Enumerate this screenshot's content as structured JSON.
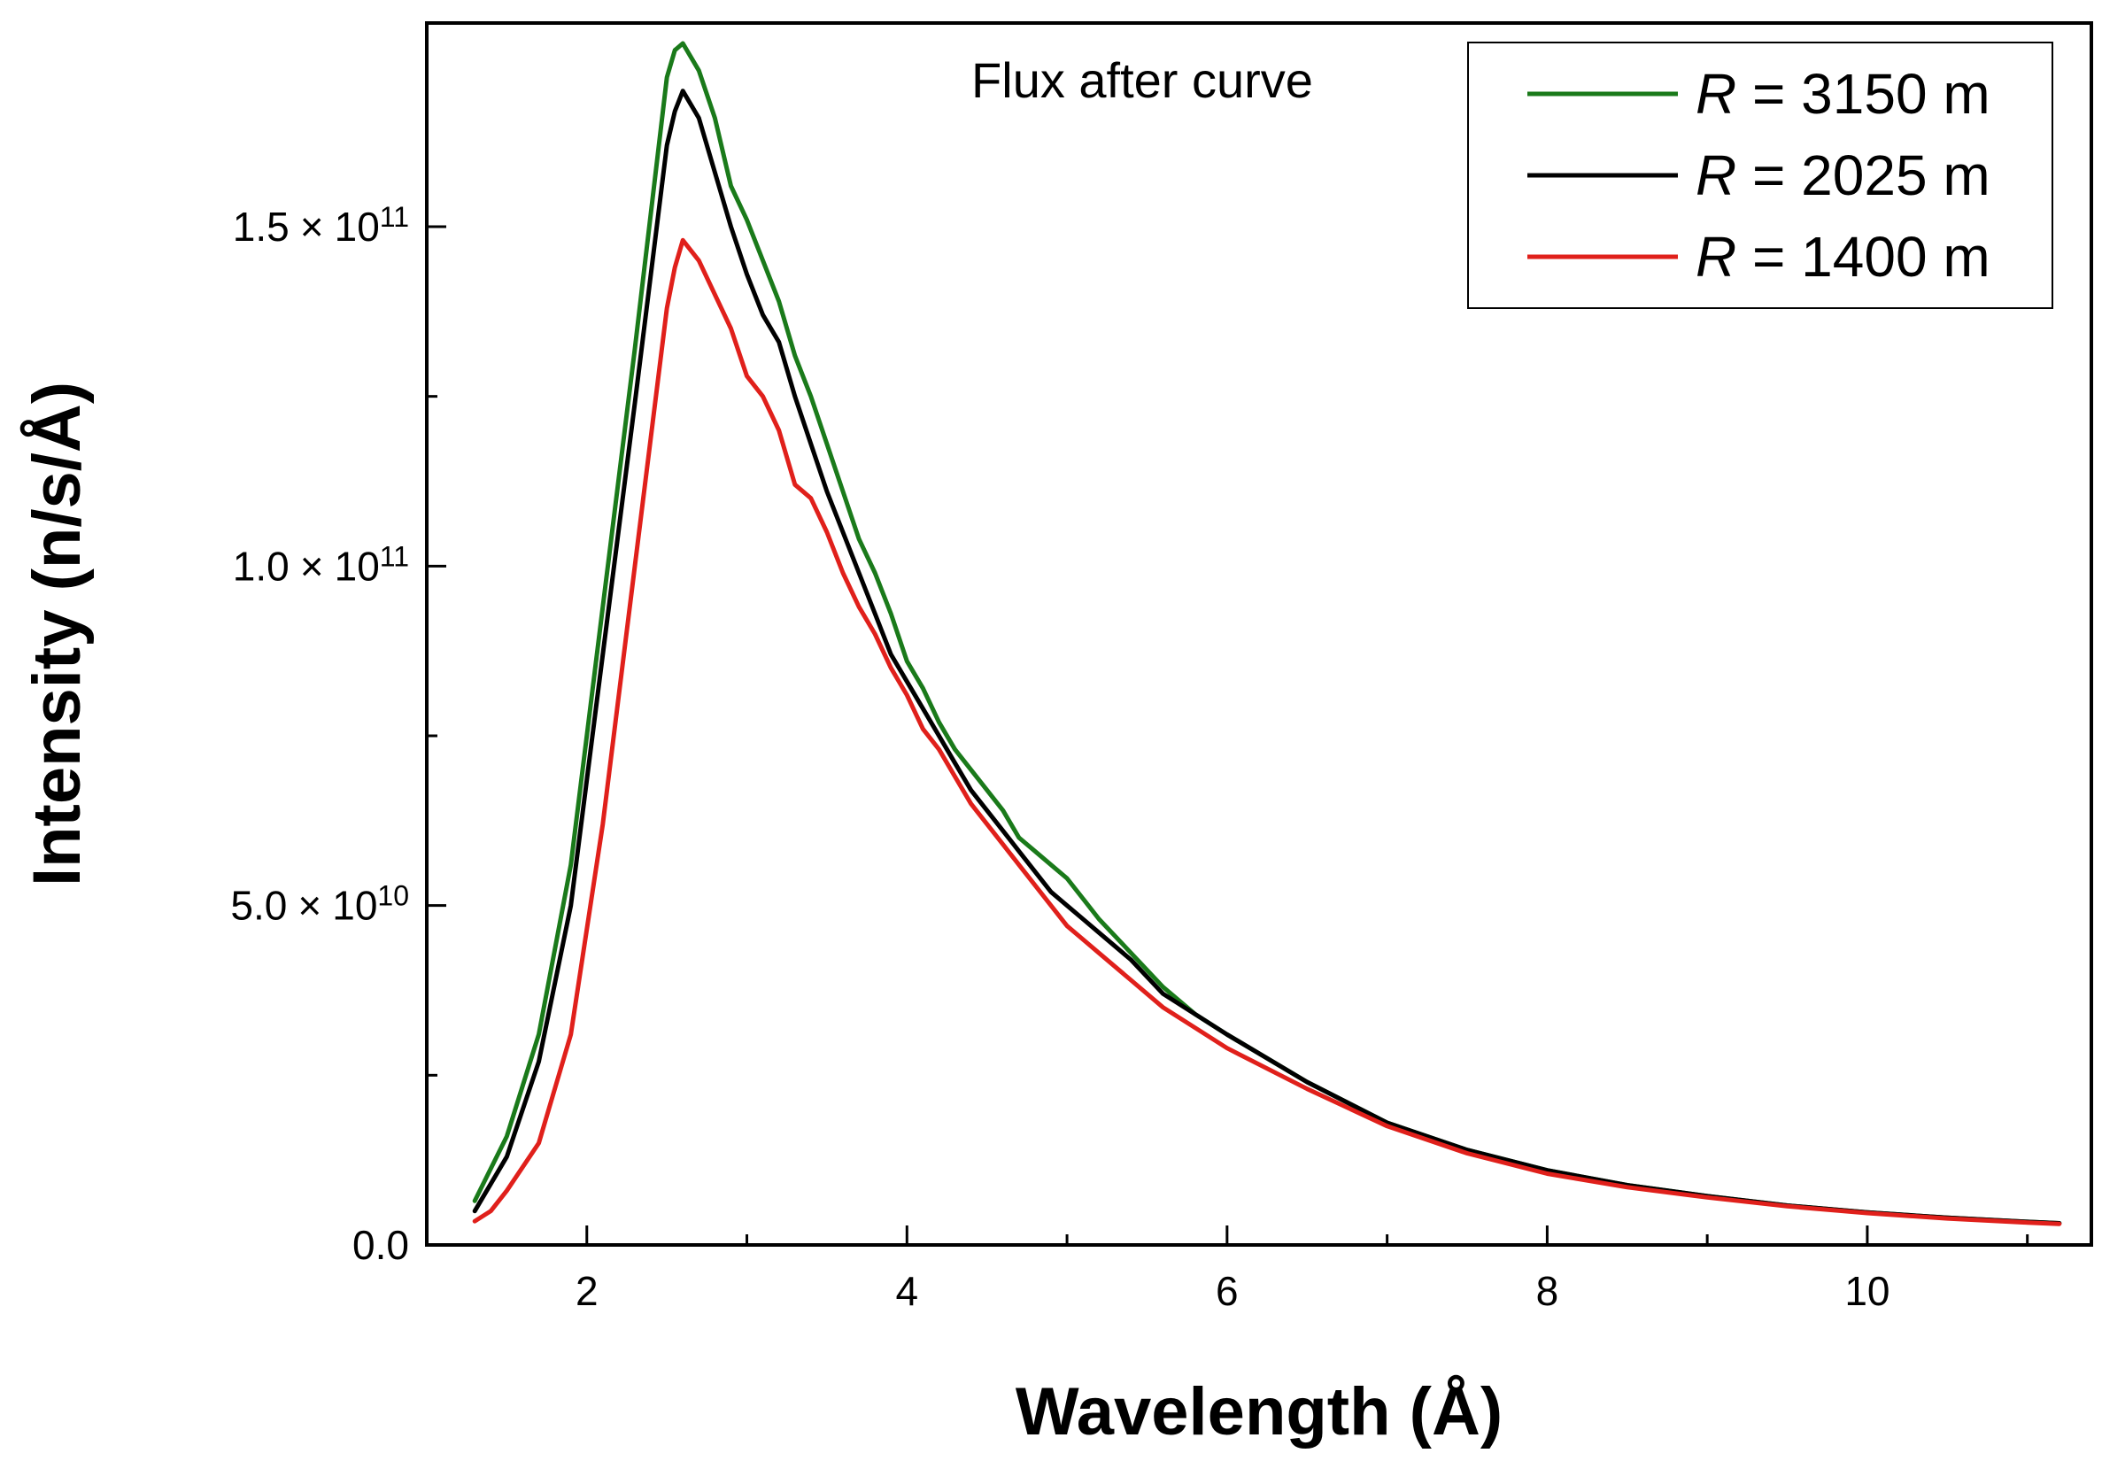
{
  "chart_data": {
    "type": "line",
    "title": "Flux after curve",
    "xlabel": "Wavelength (Å)",
    "ylabel": "Intensity (n/s/Å)",
    "xlim": [
      1.0,
      11.4
    ],
    "ylim": [
      0,
      180000000000.0
    ],
    "grid": false,
    "legend_position": "top-right",
    "x_ticks": [
      {
        "value": 2,
        "label": "2"
      },
      {
        "value": 4,
        "label": "4"
      },
      {
        "value": 6,
        "label": "6"
      },
      {
        "value": 8,
        "label": "8"
      },
      {
        "value": 10,
        "label": "10"
      }
    ],
    "x_minor_ticks": [
      3,
      5,
      7,
      9,
      11
    ],
    "y_ticks": [
      {
        "value": 0,
        "mantissa": "0.0",
        "times": "",
        "base": "",
        "exponent": ""
      },
      {
        "value": 50000000000.0,
        "mantissa": "5.0",
        "times": "×",
        "base": "10",
        "exponent": "10"
      },
      {
        "value": 100000000000.0,
        "mantissa": "1.0",
        "times": "×",
        "base": "10",
        "exponent": "11"
      },
      {
        "value": 150000000000.0,
        "mantissa": "1.5",
        "times": "×",
        "base": "10",
        "exponent": "11"
      }
    ],
    "y_minor_ticks": [
      25000000000.0,
      75000000000.0,
      125000000000.0
    ],
    "series": [
      {
        "name_italic": "R",
        "name_rest": " = 3150 m",
        "color": "#1a7a1a",
        "x": [
          1.3,
          1.5,
          1.7,
          1.9,
          2.1,
          2.3,
          2.5,
          2.55,
          2.6,
          2.7,
          2.8,
          2.9,
          3.0,
          3.1,
          3.2,
          3.3,
          3.4,
          3.5,
          3.6,
          3.7,
          3.8,
          3.9,
          4.0,
          4.1,
          4.2,
          4.3,
          4.4,
          4.5,
          4.6,
          4.7,
          4.8,
          4.9,
          5.0,
          5.1,
          5.2,
          5.4,
          5.6,
          5.8,
          6.0,
          6.5,
          7.0,
          7.5,
          8.0,
          8.5,
          9.0,
          9.5,
          10.0,
          10.5,
          11.0,
          11.2
        ],
        "y": [
          6500000000.0,
          16000000000.0,
          31000000000.0,
          56000000000.0,
          94000000000.0,
          132000000000.0,
          172000000000.0,
          176000000000.0,
          177000000000.0,
          173000000000.0,
          166000000000.0,
          156000000000.0,
          151000000000.0,
          145000000000.0,
          139000000000.0,
          131000000000.0,
          125000000000.0,
          118000000000.0,
          111000000000.0,
          104000000000.0,
          99000000000.0,
          93000000000.0,
          86000000000.0,
          82000000000.0,
          77000000000.0,
          73000000000.0,
          70000000000.0,
          67000000000.0,
          64000000000.0,
          60000000000.0,
          58000000000.0,
          56000000000.0,
          54000000000.0,
          51000000000.0,
          48000000000.0,
          43000000000.0,
          38000000000.0,
          34000000000.0,
          31000000000.0,
          24000000000.0,
          18000000000.0,
          14000000000.0,
          11000000000.0,
          8800000000.0,
          7200000000.0,
          5800000000.0,
          4800000000.0,
          4000000000.0,
          3400000000.0,
          3200000000.0
        ]
      },
      {
        "name_italic": "R",
        "name_rest": " = 2025 m",
        "color": "#000000",
        "x": [
          1.3,
          1.5,
          1.7,
          1.9,
          2.1,
          2.3,
          2.5,
          2.55,
          2.6,
          2.7,
          2.8,
          2.9,
          3.0,
          3.1,
          3.2,
          3.3,
          3.4,
          3.5,
          3.6,
          3.7,
          3.8,
          3.9,
          4.0,
          4.1,
          4.2,
          4.3,
          4.4,
          4.5,
          4.6,
          4.7,
          4.8,
          4.9,
          5.0,
          5.1,
          5.2,
          5.4,
          5.6,
          5.8,
          6.0,
          6.5,
          7.0,
          7.5,
          8.0,
          8.5,
          9.0,
          9.5,
          10.0,
          10.5,
          11.0,
          11.2
        ],
        "y": [
          5000000000.0,
          13000000000.0,
          27000000000.0,
          50000000000.0,
          87000000000.0,
          124000000000.0,
          162000000000.0,
          167000000000.0,
          170000000000.0,
          166000000000.0,
          158000000000.0,
          150000000000.0,
          143000000000.0,
          137000000000.0,
          133000000000.0,
          125000000000.0,
          118000000000.0,
          111000000000.0,
          105000000000.0,
          99000000000.0,
          93000000000.0,
          87000000000.0,
          83000000000.0,
          79000000000.0,
          75000000000.0,
          71000000000.0,
          67000000000.0,
          64000000000.0,
          61000000000.0,
          58000000000.0,
          55000000000.0,
          52000000000.0,
          50000000000.0,
          48000000000.0,
          46000000000.0,
          42000000000.0,
          37000000000.0,
          34000000000.0,
          31000000000.0,
          24000000000.0,
          18000000000.0,
          14000000000.0,
          11000000000.0,
          8800000000.0,
          7200000000.0,
          5800000000.0,
          4800000000.0,
          4000000000.0,
          3400000000.0,
          3200000000.0
        ]
      },
      {
        "name_italic": "R",
        "name_rest": " = 1400 m",
        "color": "#e0201b",
        "x": [
          1.3,
          1.4,
          1.5,
          1.7,
          1.9,
          2.1,
          2.3,
          2.5,
          2.55,
          2.6,
          2.7,
          2.8,
          2.9,
          3.0,
          3.1,
          3.2,
          3.3,
          3.4,
          3.5,
          3.6,
          3.7,
          3.8,
          3.9,
          4.0,
          4.1,
          4.2,
          4.3,
          4.4,
          4.5,
          4.6,
          4.7,
          4.8,
          4.9,
          5.0,
          5.1,
          5.2,
          5.4,
          5.6,
          5.8,
          6.0,
          6.5,
          7.0,
          7.5,
          8.0,
          8.5,
          9.0,
          9.5,
          10.0,
          10.5,
          11.0,
          11.2
        ],
        "y": [
          3500000000.0,
          5000000000.0,
          8000000000.0,
          15000000000.0,
          31000000000.0,
          62000000000.0,
          100000000000.0,
          138000000000.0,
          144000000000.0,
          148000000000.0,
          145000000000.0,
          140000000000.0,
          135000000000.0,
          128000000000.0,
          125000000000.0,
          120000000000.0,
          112000000000.0,
          110000000000.0,
          105000000000.0,
          99000000000.0,
          94000000000.0,
          90000000000.0,
          85000000000.0,
          81000000000.0,
          76000000000.0,
          73000000000.0,
          69000000000.0,
          65000000000.0,
          62000000000.0,
          59000000000.0,
          56000000000.0,
          53000000000.0,
          50000000000.0,
          47000000000.0,
          45000000000.0,
          43000000000.0,
          39000000000.0,
          35000000000.0,
          32000000000.0,
          29000000000.0,
          23000000000.0,
          17500000000.0,
          13500000000.0,
          10500000000.0,
          8500000000.0,
          7000000000.0,
          5700000000.0,
          4700000000.0,
          3900000000.0,
          3300000000.0,
          3100000000.0
        ]
      }
    ]
  }
}
